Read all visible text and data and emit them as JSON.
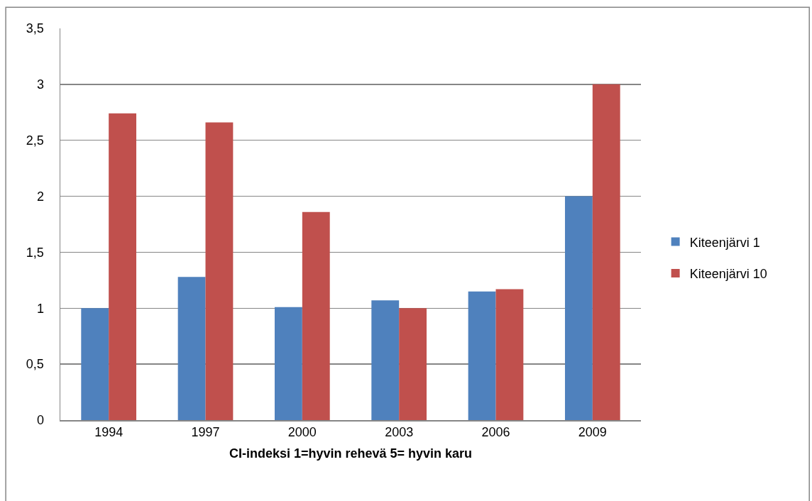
{
  "chart_data": {
    "type": "bar",
    "xlabel": "CI-indeksi 1=hyvin rehevä 5= hyvin karu",
    "categories": [
      "1994",
      "1997",
      "2000",
      "2003",
      "2006",
      "2009"
    ],
    "series": [
      {
        "name": "Kiteenjärvi 1",
        "color": "#4f81bd",
        "values": [
          1.0,
          1.28,
          1.01,
          1.07,
          1.15,
          2.0
        ]
      },
      {
        "name": "Kiteenjärvi 10",
        "color": "#c0504d",
        "values": [
          2.74,
          2.66,
          1.86,
          1.0,
          1.17,
          3.0
        ]
      }
    ],
    "ylim": [
      0,
      3.5
    ],
    "yticks": [
      0,
      {
        "value": 0.5,
        "label": "0,5"
      },
      1,
      {
        "value": 1.5,
        "label": "1,5"
      },
      2,
      {
        "value": 2.5,
        "label": "2,5"
      },
      3,
      {
        "value": 3.5,
        "label": "3,5"
      }
    ],
    "grid": "y",
    "legend": "right"
  }
}
